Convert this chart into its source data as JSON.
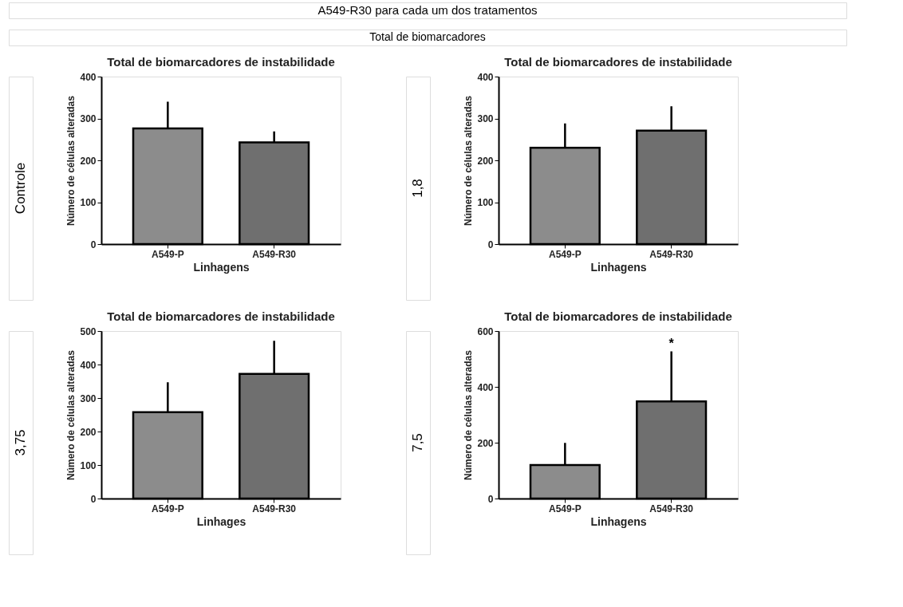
{
  "chart_data": [
    {
      "type": "bar",
      "title": "Total de biomarcadores de instabilidade",
      "xlabel": "Linhagens",
      "ylabel": "Número de células alteradas",
      "categories": [
        "A549-P",
        "A549-R30"
      ],
      "values": [
        276,
        243
      ],
      "errors": [
        64,
        26
      ],
      "colors": [
        "#8c8c8c",
        "#6f6f6f"
      ],
      "ylim": [
        0,
        400
      ],
      "yticks": [
        0,
        100,
        200,
        300,
        400
      ],
      "annotations": [
        "Controle",
        "A549-R30 para cada um dos tratamentos",
        "Total de biomarcadores"
      ]
    },
    {
      "type": "bar",
      "title": "Total de biomarcadores de instabilidade",
      "xlabel": "Linhagens",
      "ylabel": "Número de células alteradas",
      "categories": [
        "A549-P",
        "A549-R30"
      ],
      "values": [
        230,
        271
      ],
      "errors": [
        58,
        58
      ],
      "colors": [
        "#8c8c8c",
        "#6f6f6f"
      ],
      "ylim": [
        0,
        400
      ],
      "yticks": [
        0,
        100,
        200,
        300,
        400
      ],
      "annotations": [
        "1,8"
      ]
    },
    {
      "type": "bar",
      "title": "Total de biomarcadores de instabilidade",
      "xlabel": "Linhages",
      "ylabel": "Número de células alteradas",
      "categories": [
        "A549-P",
        "A549-R30"
      ],
      "values": [
        258,
        372
      ],
      "errors": [
        89,
        99
      ],
      "colors": [
        "#8c8c8c",
        "#6f6f6f"
      ],
      "ylim": [
        0,
        500
      ],
      "yticks": [
        0,
        100,
        200,
        300,
        400,
        500
      ],
      "annotations": [
        "3,75"
      ]
    },
    {
      "type": "bar",
      "title": "Total de biomarcadores de instabilidade",
      "xlabel": "Linhagens",
      "ylabel": "Número de células alteradas",
      "categories": [
        "A549-P",
        "A549-R30"
      ],
      "values": [
        120,
        348
      ],
      "errors": [
        79,
        179
      ],
      "colors": [
        "#8c8c8c",
        "#6f6f6f"
      ],
      "ylim": [
        0,
        600
      ],
      "yticks": [
        0,
        200,
        400,
        600
      ],
      "annotations": [
        "7,5",
        {
          "text": "*",
          "x": "A549-R30",
          "y": 527
        }
      ]
    }
  ]
}
